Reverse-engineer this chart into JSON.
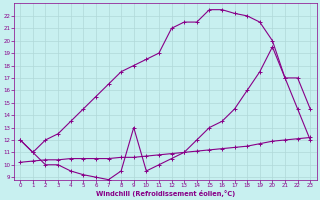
{
  "bg_color": "#c8f0f0",
  "grid_color": "#b0d8d8",
  "line_color": "#880088",
  "xlabel": "Windchill (Refroidissement éolien,°C)",
  "xlabel_color": "#880088",
  "tick_color": "#880088",
  "xlim": [
    -0.5,
    23.5
  ],
  "ylim": [
    8.8,
    23.0
  ],
  "xticks": [
    0,
    1,
    2,
    3,
    4,
    5,
    6,
    7,
    8,
    9,
    10,
    11,
    12,
    13,
    14,
    15,
    16,
    17,
    18,
    19,
    20,
    21,
    22,
    23
  ],
  "yticks": [
    9,
    10,
    11,
    12,
    13,
    14,
    15,
    16,
    17,
    18,
    19,
    20,
    21,
    22
  ],
  "curve1_x": [
    0,
    1,
    2,
    3,
    4,
    5,
    6,
    7,
    8,
    9,
    10,
    11,
    12,
    13,
    14,
    15,
    16,
    17,
    18,
    19,
    20,
    21,
    22,
    23
  ],
  "curve1_y": [
    12,
    11,
    12,
    12.5,
    13.5,
    14.5,
    15.5,
    16.5,
    17.5,
    18.0,
    18.5,
    19.0,
    21.0,
    21.5,
    21.5,
    22.5,
    22.5,
    22.2,
    22.0,
    21.5,
    20.0,
    17.0,
    17.0,
    14.5
  ],
  "curve2_x": [
    0,
    1,
    2,
    3,
    4,
    5,
    6,
    7,
    8,
    9,
    10,
    11,
    12,
    13,
    14,
    15,
    16,
    17,
    18,
    19,
    20,
    21,
    22,
    23
  ],
  "curve2_y": [
    12,
    11.0,
    10.0,
    10.0,
    9.5,
    9.2,
    9.0,
    8.8,
    9.5,
    13.0,
    9.5,
    10.0,
    10.5,
    11.0,
    12.0,
    13.0,
    13.5,
    14.5,
    16.0,
    17.5,
    19.5,
    17.0,
    14.5,
    12.0
  ],
  "curve3_x": [
    0,
    1,
    2,
    3,
    4,
    5,
    6,
    7,
    8,
    9,
    10,
    11,
    12,
    13,
    14,
    15,
    16,
    17,
    18,
    19,
    20,
    21,
    22,
    23
  ],
  "curve3_y": [
    10.2,
    10.3,
    10.4,
    10.4,
    10.5,
    10.5,
    10.5,
    10.5,
    10.6,
    10.6,
    10.7,
    10.8,
    10.9,
    11.0,
    11.1,
    11.2,
    11.3,
    11.4,
    11.5,
    11.7,
    11.9,
    12.0,
    12.1,
    12.2
  ]
}
